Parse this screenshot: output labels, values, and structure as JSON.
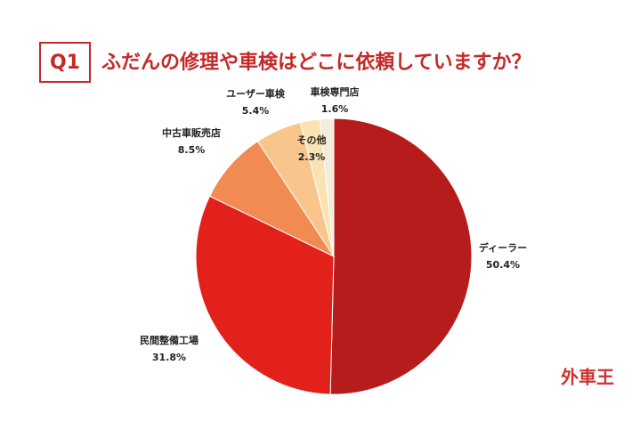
{
  "chart_data": {
    "type": "pie",
    "qnum": "Q1",
    "title": "ふだんの修理や車検はどこに依頼していますか？",
    "logo": "外車王",
    "categories": [
      "ディーラー",
      "民間整備工場",
      "中古車販売店",
      "ユーザー車検",
      "その他",
      "車検専門店"
    ],
    "values": [
      50.4,
      31.8,
      8.5,
      5.4,
      2.3,
      1.6
    ],
    "value_labels": [
      "50.4%",
      "31.8%",
      "8.5%",
      "5.4%",
      "2.3%",
      "1.6%"
    ],
    "colors": [
      "#b71c1c",
      "#e3211b",
      "#f28a53",
      "#f8c68c",
      "#fbe2b2",
      "#f3ecdc"
    ]
  }
}
